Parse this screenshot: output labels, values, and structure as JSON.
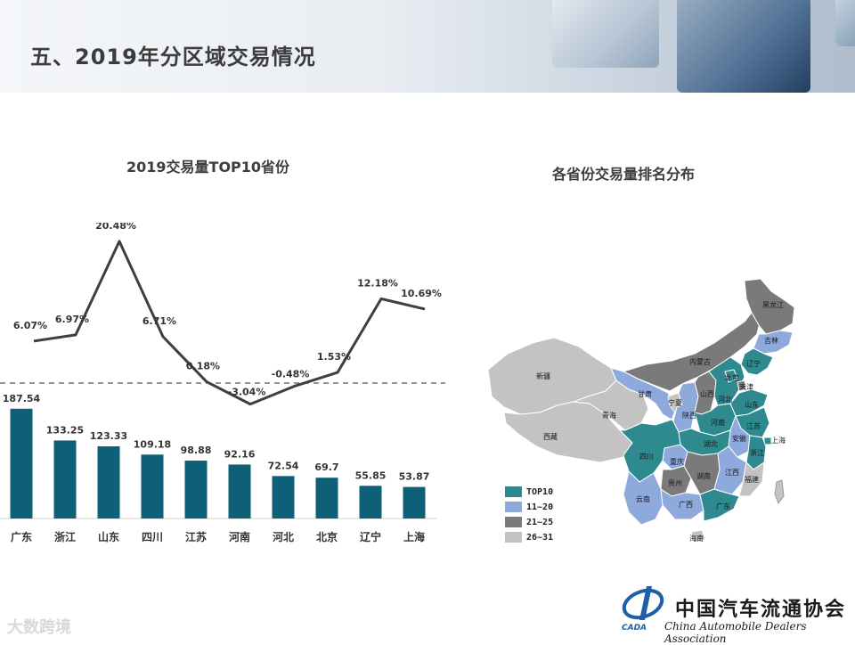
{
  "page": {
    "title": "五、2019年分区域交易情况"
  },
  "bar_panel": {
    "title": "2019交易量TOP10省份"
  },
  "map_panel": {
    "title": "各省份交易量排名分布"
  },
  "chart_data": [
    {
      "type": "bar",
      "title": "2019交易量TOP10省份",
      "categories": [
        "广东",
        "浙江",
        "山东",
        "四川",
        "江苏",
        "河南",
        "河北",
        "北京",
        "辽宁",
        "上海"
      ],
      "series": [
        {
          "values": [
            187.54,
            133.25,
            123.33,
            109.18,
            98.88,
            92.16,
            72.54,
            69.7,
            55.85,
            53.87
          ],
          "color": "#0e5f78"
        },
        {
          "type": "line",
          "values": [
            6.07,
            6.97,
            20.48,
            6.71,
            0.18,
            -3.04,
            -0.48,
            1.53,
            12.18,
            10.69
          ],
          "labels": [
            "6.07%",
            "6.97%",
            "20.48%",
            "6.71%",
            "0.18%",
            "-3.04%",
            "-0.48%",
            "1.53%",
            "12.18%",
            "10.69%"
          ],
          "color": "#3f3f3f"
        }
      ],
      "value_labels": [
        "187.54",
        "133.25",
        "123.33",
        "109.18",
        "98.88",
        "92.16",
        "72.54",
        "69.7",
        "55.85",
        "53.87"
      ],
      "reference_line": 0,
      "grid": false
    },
    {
      "type": "map",
      "title": "各省份交易量排名分布",
      "legend": [
        {
          "label": "TOP10",
          "color": "#2e8a8f"
        },
        {
          "label": "11~20",
          "color": "#8ea9dc"
        },
        {
          "label": "21~25",
          "color": "#7a7a7a"
        },
        {
          "label": "26~31",
          "color": "#c3c3c3"
        }
      ],
      "region_labels": [
        "新疆",
        "西藏",
        "青海",
        "甘肃",
        "宁夏",
        "陕西",
        "山西",
        "内蒙古",
        "黑龙江",
        "吉林",
        "辽宁",
        "天津",
        "北京",
        "河北",
        "山东",
        "河南",
        "湖北",
        "安徽",
        "江苏",
        "上海",
        "浙江",
        "四川",
        "重庆",
        "贵州",
        "湖南",
        "江西",
        "福建",
        "云南",
        "广西",
        "广东",
        "海南"
      ]
    }
  ],
  "footer": {
    "logo_text": "CADA",
    "association_cn": "中国汽车流通协会",
    "association_en": "China Automobile Dealers Association",
    "watermark": "大数跨境"
  }
}
